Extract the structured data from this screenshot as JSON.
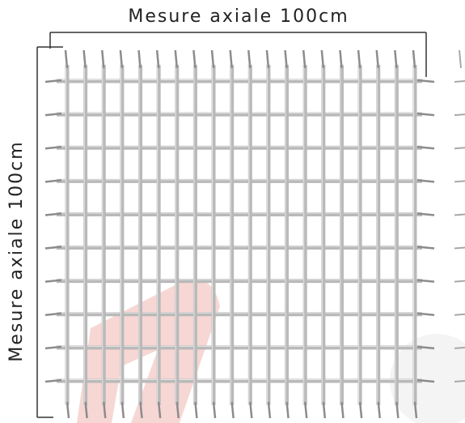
{
  "dimensions": {
    "width_label": "Mesure axiale 100cm",
    "height_label": "Mesure axiale 100cm"
  },
  "panel": {
    "vertical_wires": 20,
    "horizontal_wires": 10,
    "wire_color": "#b9b9b9",
    "wire_highlight_color": "#e6e6e6",
    "spike_color": "#8c8c8c",
    "dimension_line_color": "#333333"
  },
  "watermark": {
    "color": "#f3c9c6"
  }
}
